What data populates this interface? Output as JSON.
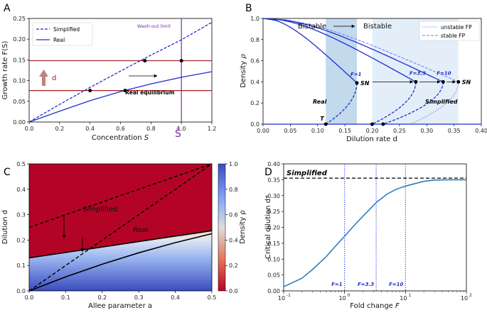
{
  "figure": {
    "panels": [
      "A",
      "B",
      "C",
      "D"
    ]
  },
  "chart_data": [
    {
      "panel": "A",
      "type": "line",
      "xlabel_main": "Concentration ",
      "xlabel_var": "S",
      "ylabel": "Growth rate F(S)",
      "xlim": [
        0,
        1.2
      ],
      "ylim": [
        0,
        0.25
      ],
      "xticks": [
        "0.0",
        "0.2",
        "0.4",
        "0.6",
        "0.8",
        "1.0",
        "1.2"
      ],
      "yticks": [
        "0.00",
        "0.05",
        "0.10",
        "0.15",
        "0.20",
        "0.25"
      ],
      "legend": [
        "Simplified",
        "Real"
      ],
      "series": [
        {
          "name": "Simplified",
          "style": "dashed",
          "color": "#1f2fd0",
          "x": [
            0,
            0.2,
            0.4,
            0.6,
            0.8,
            1.0,
            1.2
          ],
          "y": [
            0,
            0.0425,
            0.0835,
            0.123,
            0.1615,
            0.1985,
            0.2405
          ]
        },
        {
          "name": "Real",
          "style": "solid",
          "color": "#1f2fd0",
          "x": [
            0,
            0.2,
            0.4,
            0.6,
            0.8,
            1.0,
            1.2
          ],
          "y": [
            0,
            0.026,
            0.0515,
            0.0735,
            0.092,
            0.108,
            0.1215
          ]
        }
      ],
      "hlines": [
        0.148,
        0.076
      ],
      "hline_color": "#a11d1d",
      "vline": 1.0,
      "vline_color": "#7a2ba0",
      "points": [
        {
          "x": 0.4,
          "y": 0.076
        },
        {
          "x": 0.63,
          "y": 0.076
        },
        {
          "x": 0.76,
          "y": 0.148
        },
        {
          "x": 1.0,
          "y": 0.148
        }
      ],
      "annotations": {
        "washout": "Wash-out limit",
        "real_eq": "Real equilibrium",
        "arrow_label": "d",
        "s_tilde": "S̃"
      }
    },
    {
      "panel": "B",
      "type": "line",
      "xlabel": "Dilution rate d",
      "ylabel_main": "Density ",
      "ylabel_var": "ρ",
      "xlim": [
        0,
        0.4
      ],
      "ylim": [
        0,
        1.0
      ],
      "xticks": [
        "0.00",
        "0.05",
        "0.10",
        "0.15",
        "0.20",
        "0.25",
        "0.30",
        "0.35",
        "0.40"
      ],
      "yticks": [
        "0.0",
        "0.2",
        "0.4",
        "0.6",
        "0.8",
        "1.0"
      ],
      "legend": [
        "unstable FP",
        "stable FP"
      ],
      "bistable_regions": [
        [
          0.115,
          0.172
        ],
        [
          0.2,
          0.358
        ]
      ],
      "bistable_label": "Bistable",
      "curves": [
        {
          "label": "F=1",
          "d_sn": 0.172,
          "rho_sn": 0.39,
          "d_t": 0.115
        },
        {
          "label": "F=3.3",
          "d_sn": 0.28,
          "rho_sn": 0.4,
          "d_t": 0.2
        },
        {
          "label": "F=10",
          "d_sn": 0.33,
          "rho_sn": 0.4,
          "d_t": 0.22
        }
      ],
      "simplified_curve": {
        "d_sn": 0.358,
        "rho_sn": 0.4
      },
      "annotations": {
        "sn": "SN",
        "t": "T",
        "real": "Real",
        "simplified": "Simplified"
      }
    },
    {
      "panel": "C",
      "type": "heatmap",
      "xlabel": "Allee parameter a",
      "ylabel": "Dilution d",
      "xlim": [
        0,
        0.5
      ],
      "ylim": [
        0,
        0.5
      ],
      "xticks": [
        "0.0",
        "0.1",
        "0.2",
        "0.3",
        "0.4",
        "0.5"
      ],
      "yticks": [
        "0.0",
        "0.1",
        "0.2",
        "0.3",
        "0.4",
        "0.5"
      ],
      "colorbar_label": "Density ρ",
      "colorbar_ticks": [
        "0.0",
        "0.2",
        "0.4",
        "0.6",
        "0.8",
        "1.0"
      ],
      "boundaries": [
        {
          "name": "Real upper",
          "style": "solid",
          "x": [
            0,
            0.5
          ],
          "y": [
            0.13,
            0.237
          ]
        },
        {
          "name": "Simplified upper",
          "style": "dashed",
          "x": [
            0,
            0.5
          ],
          "y": [
            0.25,
            0.5
          ]
        },
        {
          "name": "Real lower",
          "style": "solid",
          "x": [
            0,
            0.1,
            0.2,
            0.3,
            0.4,
            0.5
          ],
          "y": [
            0,
            0.055,
            0.105,
            0.15,
            0.19,
            0.225
          ]
        },
        {
          "name": "Simplified lower",
          "style": "dashed",
          "x": [
            0,
            0.1,
            0.2,
            0.3,
            0.4,
            0.5
          ],
          "y": [
            0,
            0.1,
            0.2,
            0.3,
            0.4,
            0.5
          ]
        }
      ],
      "annotations": {
        "simplified": "Simplified",
        "real": "Real"
      }
    },
    {
      "panel": "D",
      "type": "line",
      "xscale": "log",
      "xlabel_main": "Fold change ",
      "xlabel_var": "F",
      "ylabel": "Critical dilution d*",
      "xlim": [
        0.1,
        100
      ],
      "ylim": [
        0,
        0.4
      ],
      "xticks": [
        "10",
        "10",
        "10",
        "10"
      ],
      "xtick_exps": [
        "-1",
        "0",
        "1",
        "2"
      ],
      "yticks": [
        "0.00",
        "0.05",
        "0.10",
        "0.15",
        "0.20",
        "0.25",
        "0.30",
        "0.35",
        "0.40"
      ],
      "series": [
        {
          "name": "Real",
          "color": "#2a7fc0",
          "x": [
            0.1,
            0.2,
            0.3,
            0.5,
            0.7,
            1,
            1.5,
            2,
            3.3,
            5,
            7,
            10,
            20,
            30,
            50,
            100
          ],
          "y": [
            0.013,
            0.04,
            0.068,
            0.108,
            0.14,
            0.172,
            0.21,
            0.235,
            0.278,
            0.305,
            0.32,
            0.33,
            0.345,
            0.349,
            0.35,
            0.35
          ]
        }
      ],
      "simplified_level": 0.355,
      "vlines": [
        1,
        3.3,
        10
      ],
      "vline_labels": [
        "F=1",
        "F=3.3",
        "F=10"
      ],
      "annotations": {
        "simplified": "Simplified"
      }
    }
  ]
}
